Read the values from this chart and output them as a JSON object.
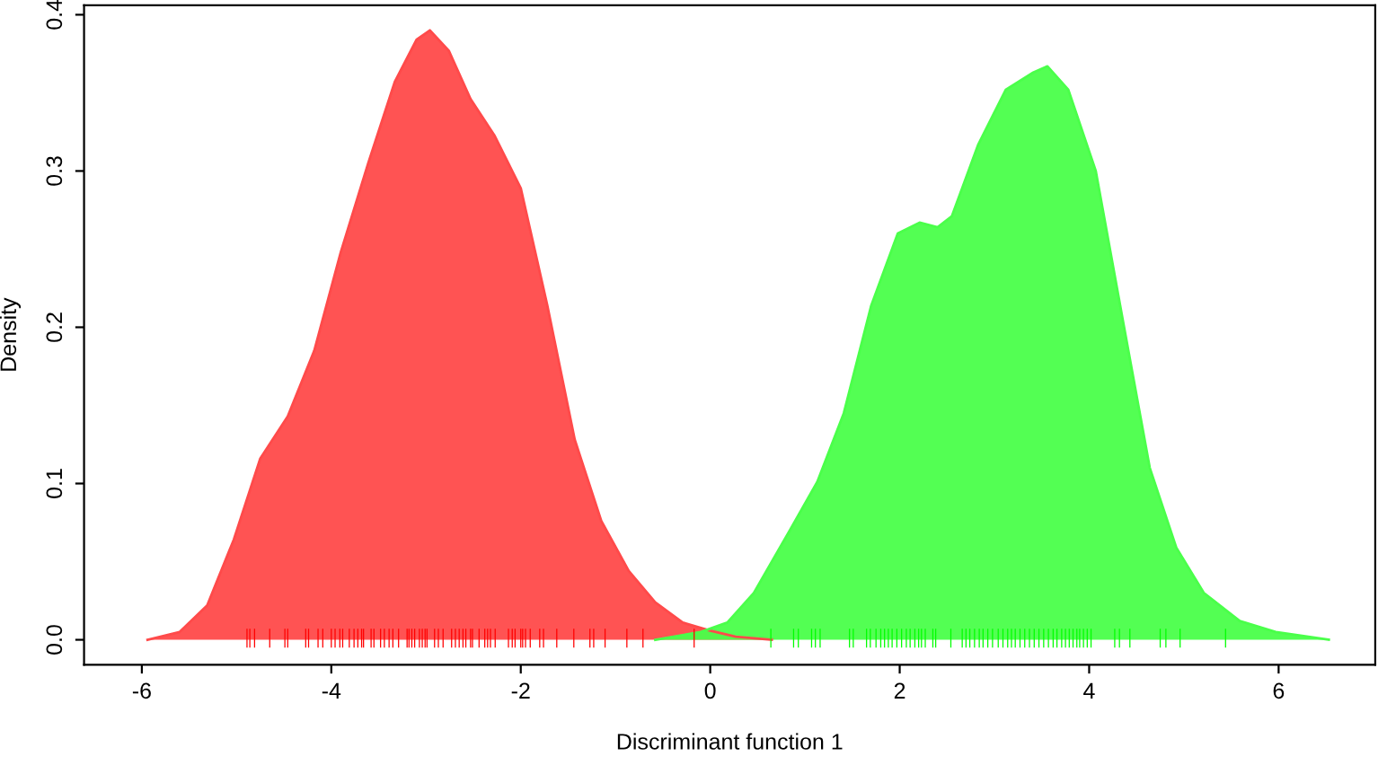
{
  "chart_data": {
    "type": "area",
    "xlabel": "Discriminant function 1",
    "ylabel": "Density",
    "xlim": [
      -6.61,
      7.02
    ],
    "ylim": [
      -0.016,
      0.406
    ],
    "xticks": [
      -6,
      -4,
      -2,
      0,
      2,
      4,
      6
    ],
    "yticks": [
      {
        "value": 0,
        "label": "0.0"
      },
      0.1,
      0.2,
      0.3,
      0.4
    ],
    "grid": false,
    "legend": false,
    "series": [
      {
        "color": "#ff4a4a",
        "x": [
          -5.94,
          -5.6,
          -5.31,
          -5.03,
          -4.75,
          -4.46,
          -4.18,
          -3.9,
          -3.61,
          -3.33,
          -3.1,
          -2.96,
          -2.76,
          -2.53,
          -2.28,
          -2.0,
          -1.72,
          -1.43,
          -1.15,
          -0.86,
          -0.58,
          -0.29,
          -0.01,
          0.27,
          0.65
        ],
        "values": [
          0.0,
          0.005,
          0.022,
          0.064,
          0.116,
          0.143,
          0.185,
          0.248,
          0.305,
          0.357,
          0.384,
          0.39,
          0.377,
          0.346,
          0.323,
          0.289,
          0.214,
          0.128,
          0.076,
          0.044,
          0.024,
          0.011,
          0.006,
          0.002,
          0.0
        ]
      },
      {
        "color": "#4aff4a",
        "x": [
          -0.58,
          -0.1,
          0.18,
          0.46,
          0.84,
          1.13,
          1.41,
          1.7,
          1.98,
          2.21,
          2.4,
          2.55,
          2.83,
          3.12,
          3.41,
          3.56,
          3.78,
          4.07,
          4.36,
          4.64,
          4.92,
          5.21,
          5.59,
          5.97,
          6.53
        ],
        "values": [
          0.0,
          0.005,
          0.011,
          0.03,
          0.07,
          0.101,
          0.145,
          0.214,
          0.26,
          0.267,
          0.264,
          0.271,
          0.317,
          0.352,
          0.363,
          0.367,
          0.352,
          0.3,
          0.203,
          0.11,
          0.059,
          0.03,
          0.012,
          0.005,
          0.0
        ]
      },
      {
        "type": "bar",
        "color": "#ff0000",
        "x": [
          -4.89,
          -4.86,
          -4.81,
          -4.65,
          -4.49,
          -4.46,
          -4.27,
          -4.24,
          -4.14,
          -4.09,
          -4.0,
          -3.96,
          -3.91,
          -3.88,
          -3.81,
          -3.76,
          -3.72,
          -3.68,
          -3.66,
          -3.58,
          -3.55,
          -3.48,
          -3.44,
          -3.39,
          -3.35,
          -3.29,
          -3.2,
          -3.18,
          -3.15,
          -3.12,
          -3.07,
          -3.04,
          -3.01,
          -2.99,
          -2.91,
          -2.87,
          -2.82,
          -2.73,
          -2.69,
          -2.65,
          -2.61,
          -2.58,
          -2.53,
          -2.51,
          -2.44,
          -2.38,
          -2.35,
          -2.32,
          -2.27,
          -2.13,
          -2.09,
          -2.06,
          -2.0,
          -1.98,
          -1.95,
          -1.9,
          -1.8,
          -1.76,
          -1.62,
          -1.44,
          -1.27,
          -1.23,
          -1.11,
          -0.88,
          -0.71,
          -0.17
        ],
        "base": [
          -0.005,
          -0.005,
          -0.005,
          -0.005,
          -0.005,
          -0.005,
          -0.005,
          -0.005,
          -0.005,
          -0.005,
          -0.005,
          -0.005,
          -0.005,
          -0.005,
          -0.005,
          -0.005,
          -0.005,
          -0.005,
          -0.005,
          -0.005,
          -0.005,
          -0.005,
          -0.005,
          -0.005,
          -0.005,
          -0.005,
          -0.005,
          -0.005,
          -0.005,
          -0.005,
          -0.005,
          -0.005,
          -0.005,
          -0.005,
          -0.005,
          -0.005,
          -0.005,
          -0.005,
          -0.005,
          -0.005,
          -0.005,
          -0.005,
          -0.005,
          -0.005,
          -0.005,
          -0.005,
          -0.005,
          -0.005,
          -0.005,
          -0.005,
          -0.005,
          -0.005,
          -0.005,
          -0.005,
          -0.005,
          -0.005,
          -0.005,
          -0.005,
          -0.005,
          -0.005,
          -0.005,
          -0.005,
          -0.005,
          -0.005,
          -0.005,
          -0.005
        ],
        "values": [
          0.012,
          0.012,
          0.012,
          0.012,
          0.012,
          0.012,
          0.012,
          0.012,
          0.012,
          0.012,
          0.012,
          0.012,
          0.012,
          0.012,
          0.012,
          0.012,
          0.012,
          0.012,
          0.012,
          0.012,
          0.012,
          0.012,
          0.012,
          0.012,
          0.012,
          0.012,
          0.012,
          0.012,
          0.012,
          0.012,
          0.012,
          0.012,
          0.012,
          0.012,
          0.012,
          0.012,
          0.012,
          0.012,
          0.012,
          0.012,
          0.012,
          0.012,
          0.012,
          0.012,
          0.012,
          0.012,
          0.012,
          0.012,
          0.012,
          0.012,
          0.012,
          0.012,
          0.012,
          0.012,
          0.012,
          0.012,
          0.012,
          0.012,
          0.012,
          0.012,
          0.012,
          0.012,
          0.012,
          0.012,
          0.012,
          0.012
        ]
      },
      {
        "type": "bar",
        "color": "#00ff00",
        "x": [
          0.64,
          0.88,
          0.93,
          1.07,
          1.11,
          1.16,
          1.47,
          1.51,
          1.65,
          1.69,
          1.75,
          1.8,
          1.84,
          1.88,
          1.92,
          1.97,
          2.02,
          2.07,
          2.11,
          2.16,
          2.2,
          2.23,
          2.27,
          2.35,
          2.38,
          2.54,
          2.66,
          2.7,
          2.74,
          2.79,
          2.84,
          2.88,
          2.93,
          2.98,
          3.04,
          3.09,
          3.14,
          3.18,
          3.22,
          3.27,
          3.32,
          3.37,
          3.42,
          3.47,
          3.52,
          3.57,
          3.62,
          3.66,
          3.71,
          3.75,
          3.79,
          3.83,
          3.87,
          3.9,
          3.94,
          3.98,
          4.02,
          4.27,
          4.32,
          4.43,
          4.75,
          4.81,
          4.96,
          5.44
        ],
        "base": [
          -0.005,
          -0.005,
          -0.005,
          -0.005,
          -0.005,
          -0.005,
          -0.005,
          -0.005,
          -0.005,
          -0.005,
          -0.005,
          -0.005,
          -0.005,
          -0.005,
          -0.005,
          -0.005,
          -0.005,
          -0.005,
          -0.005,
          -0.005,
          -0.005,
          -0.005,
          -0.005,
          -0.005,
          -0.005,
          -0.005,
          -0.005,
          -0.005,
          -0.005,
          -0.005,
          -0.005,
          -0.005,
          -0.005,
          -0.005,
          -0.005,
          -0.005,
          -0.005,
          -0.005,
          -0.005,
          -0.005,
          -0.005,
          -0.005,
          -0.005,
          -0.005,
          -0.005,
          -0.005,
          -0.005,
          -0.005,
          -0.005,
          -0.005,
          -0.005,
          -0.005,
          -0.005,
          -0.005,
          -0.005,
          -0.005,
          -0.005,
          -0.005,
          -0.005,
          -0.005,
          -0.005,
          -0.005,
          -0.005,
          -0.005
        ],
        "values": [
          0.012,
          0.012,
          0.012,
          0.012,
          0.012,
          0.012,
          0.012,
          0.012,
          0.012,
          0.012,
          0.012,
          0.012,
          0.012,
          0.012,
          0.012,
          0.012,
          0.012,
          0.012,
          0.012,
          0.012,
          0.012,
          0.012,
          0.012,
          0.012,
          0.012,
          0.012,
          0.012,
          0.012,
          0.012,
          0.012,
          0.012,
          0.012,
          0.012,
          0.012,
          0.012,
          0.012,
          0.012,
          0.012,
          0.012,
          0.012,
          0.012,
          0.012,
          0.012,
          0.012,
          0.012,
          0.012,
          0.012,
          0.012,
          0.012,
          0.012,
          0.012,
          0.012,
          0.012,
          0.012,
          0.012,
          0.012,
          0.012,
          0.012,
          0.012,
          0.012,
          0.012,
          0.012,
          0.012,
          0.012
        ]
      }
    ]
  }
}
